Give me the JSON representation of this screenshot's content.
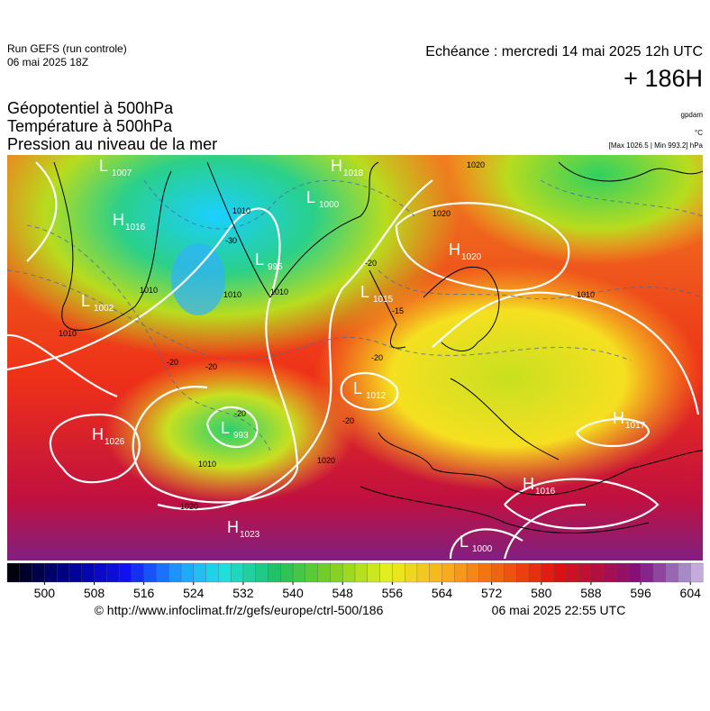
{
  "header": {
    "run": "Run GEFS (run controle)",
    "run_date": "06 mai 2025 18Z",
    "echeance": "Echéance : mercredi 14 mai 2025 12h UTC",
    "lead": "+ 186H"
  },
  "titles": [
    "Géopotentiel à 500hPa",
    "Température à 500hPa",
    "Pression au niveau de la mer"
  ],
  "units": {
    "geopotential": "gpdam",
    "temperature": "°C",
    "pressure": "[Max 1026.5 | Min 993.2] hPa"
  },
  "centers": [
    {
      "letter": "L",
      "value": "1007"
    },
    {
      "letter": "H",
      "value": "1018"
    },
    {
      "letter": "L",
      "value": "1000"
    },
    {
      "letter": "H",
      "value": "1016"
    },
    {
      "letter": "H",
      "value": "1020"
    },
    {
      "letter": "L",
      "value": "995"
    },
    {
      "letter": "L",
      "value": "1015"
    },
    {
      "letter": "L",
      "value": "1002"
    },
    {
      "letter": "L",
      "value": "1012"
    },
    {
      "letter": "L",
      "value": "993"
    },
    {
      "letter": "H",
      "value": "1026"
    },
    {
      "letter": "H",
      "value": "1017"
    },
    {
      "letter": "H",
      "value": "1016"
    },
    {
      "letter": "H",
      "value": "1023"
    },
    {
      "letter": "L",
      "value": "1000"
    }
  ],
  "isobar_labels": [
    "1010",
    "1010",
    "1010",
    "1010",
    "1020",
    "1020",
    "1020",
    "1010",
    "1010",
    "1020",
    "1010"
  ],
  "temperature_labels": [
    "-30",
    "-20",
    "-20",
    "-15",
    "-20",
    "-20",
    "-20",
    "-20"
  ],
  "colorbar": {
    "range": [
      494,
      606
    ],
    "step": 2,
    "ticks": [
      500,
      508,
      516,
      524,
      532,
      540,
      548,
      556,
      564,
      572,
      580,
      588,
      596,
      604
    ]
  },
  "footer": {
    "url": "© http://www.infoclimat.fr/z/gefs/europe/ctrl-500/186",
    "timestamp": "06 mai 2025 22:55 UTC"
  }
}
